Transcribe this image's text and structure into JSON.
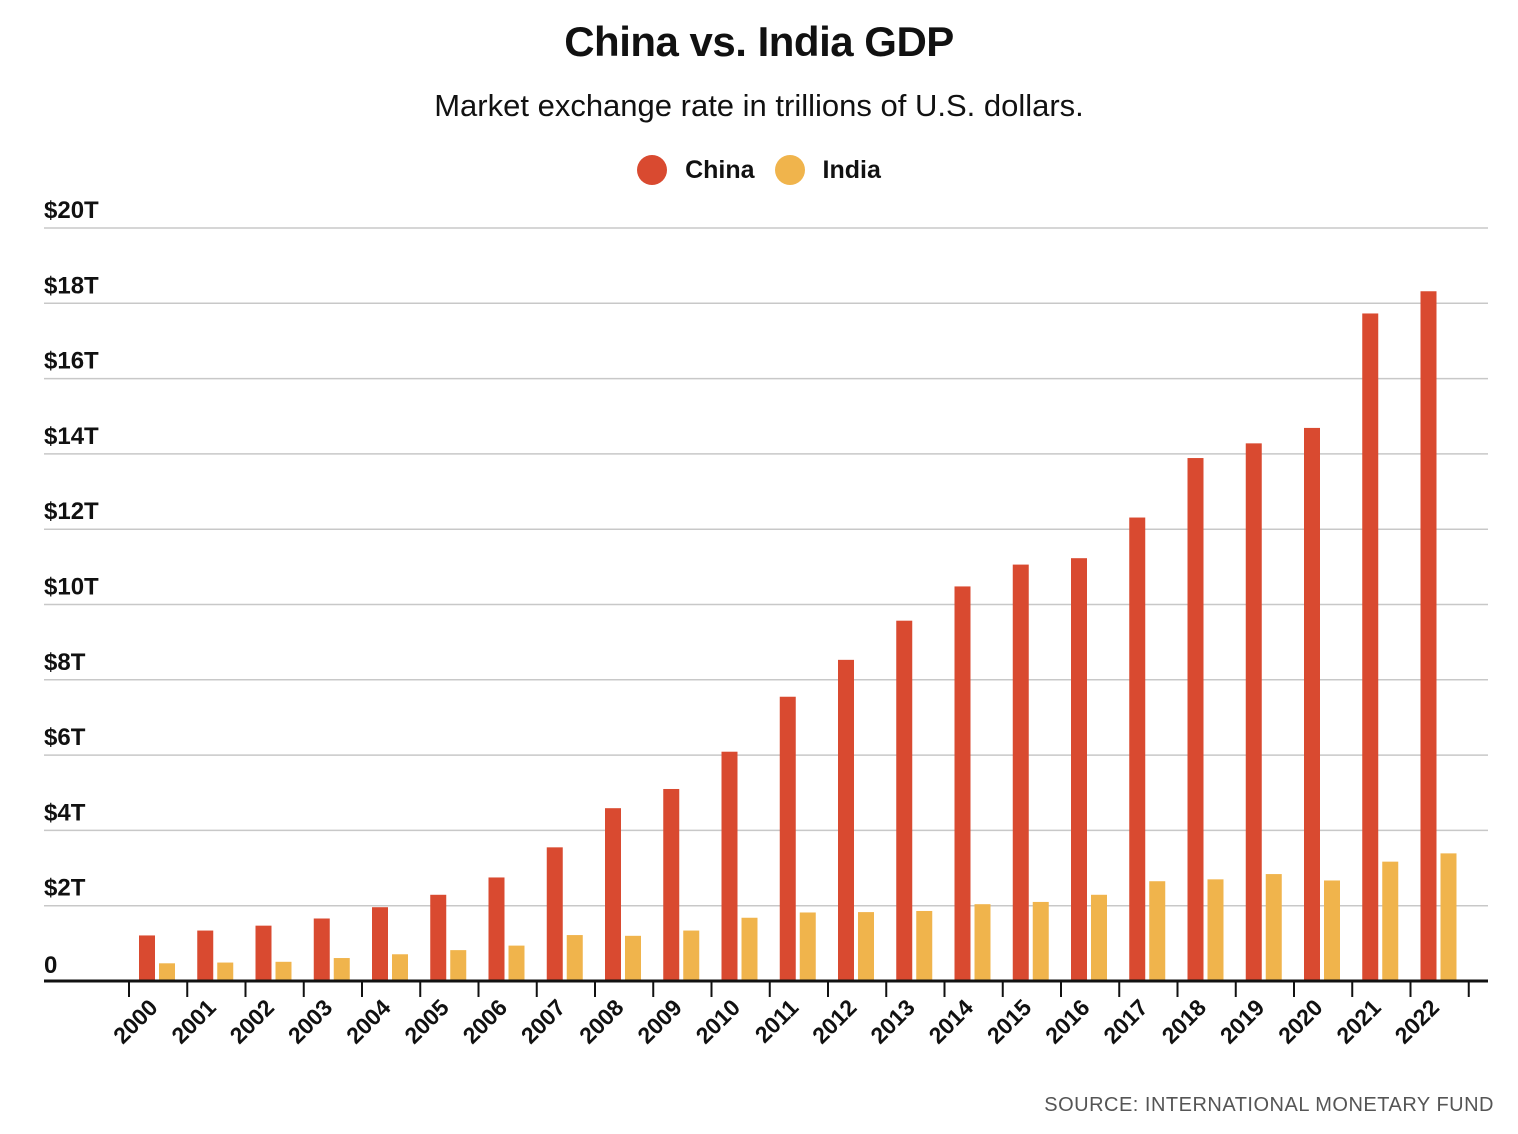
{
  "chart_data": {
    "type": "bar",
    "title": "China vs. India GDP",
    "subtitle": "Market exchange rate in trillions of U.S. dollars.",
    "categories": [
      "2000",
      "2001",
      "2002",
      "2003",
      "2004",
      "2005",
      "2006",
      "2007",
      "2008",
      "2009",
      "2010",
      "2011",
      "2012",
      "2013",
      "2014",
      "2015",
      "2016",
      "2017",
      "2018",
      "2019",
      "2020",
      "2021",
      "2022"
    ],
    "series": [
      {
        "name": "China",
        "color": "#d94a30",
        "values": [
          1.21,
          1.34,
          1.47,
          1.66,
          1.96,
          2.29,
          2.75,
          3.55,
          4.59,
          5.1,
          6.09,
          7.55,
          8.53,
          9.57,
          10.48,
          11.06,
          11.23,
          12.31,
          13.89,
          14.28,
          14.69,
          17.73,
          18.32
        ]
      },
      {
        "name": "India",
        "color": "#f0b44c",
        "values": [
          0.47,
          0.49,
          0.51,
          0.61,
          0.71,
          0.82,
          0.94,
          1.22,
          1.2,
          1.34,
          1.68,
          1.82,
          1.83,
          1.86,
          2.04,
          2.1,
          2.29,
          2.65,
          2.7,
          2.84,
          2.67,
          3.17,
          3.39
        ]
      }
    ],
    "y_ticks": [
      0,
      2,
      4,
      6,
      8,
      10,
      12,
      14,
      16,
      18,
      20
    ],
    "y_tick_labels": [
      "0",
      "$2T",
      "$4T",
      "$6T",
      "$8T",
      "$10T",
      "$12T",
      "$14T",
      "$16T",
      "$18T",
      "$20T"
    ],
    "ylim": [
      0,
      20
    ],
    "grid": true,
    "legend_position": "top-center",
    "source": "SOURCE: INTERNATIONAL MONETARY FUND"
  }
}
